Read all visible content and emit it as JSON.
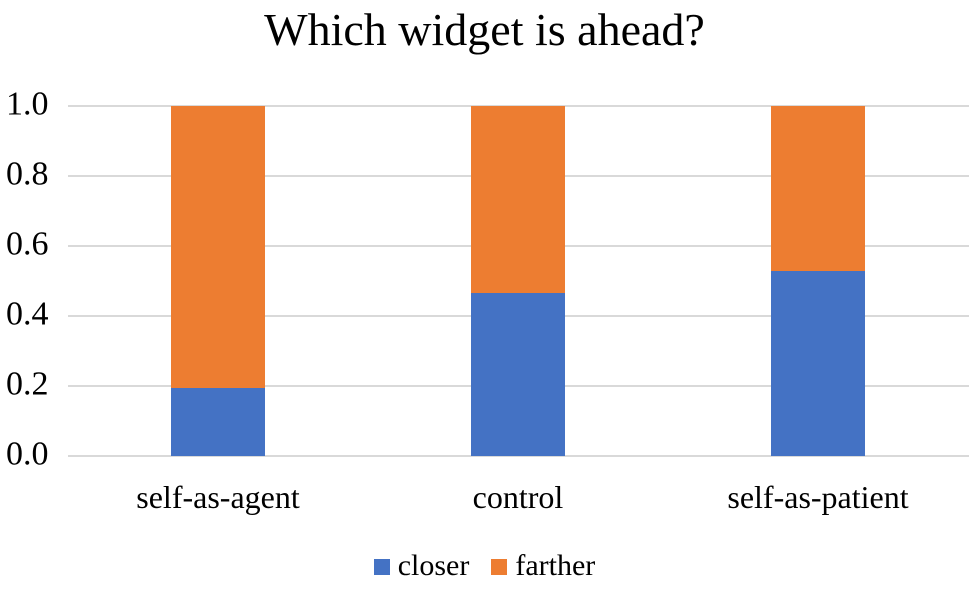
{
  "chart_data": {
    "type": "bar",
    "subtype": "stacked-vertical",
    "title": "Which widget is ahead?",
    "categories": [
      "self-as-agent",
      "control",
      "self-as-patient"
    ],
    "series": [
      {
        "name": "closer",
        "color": "#4472C4",
        "values": [
          0.195,
          0.465,
          0.53
        ]
      },
      {
        "name": "farther",
        "color": "#ED7D31",
        "values": [
          0.805,
          0.535,
          0.47
        ]
      }
    ],
    "xlabel": "",
    "ylabel": "",
    "ylim": [
      0,
      1
    ],
    "yticks": [
      "0.0",
      "0.2",
      "0.4",
      "0.6",
      "0.8",
      "1.0"
    ],
    "grid": true,
    "gridline_color": "#D9D9D9",
    "legend_position": "bottom",
    "text_color": "#000000",
    "background_color": "#FFFFFF"
  }
}
